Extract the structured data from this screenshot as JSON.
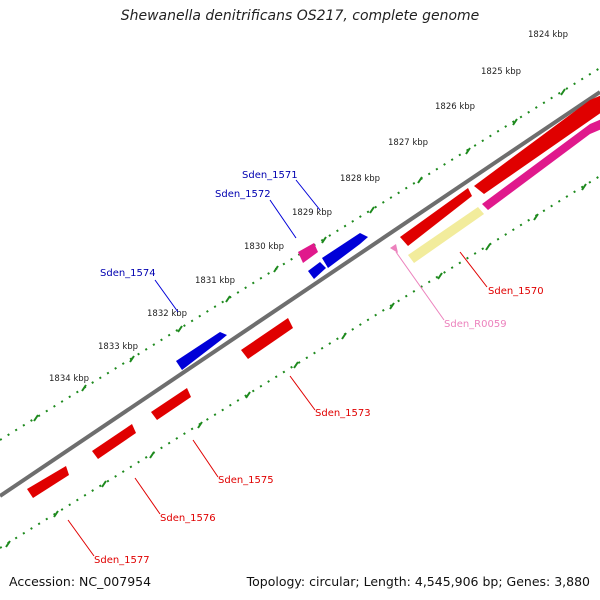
{
  "title": "Shewanella denitrificans OS217, complete genome",
  "footer": {
    "accession": "Accession: NC_007954",
    "info": "Topology: circular; Length: 4,545,906 bp; Genes: 3,880"
  },
  "colors": {
    "backbone": "#6e6e6e",
    "ruler": "#1e8a1e",
    "forward_gene": "#e00000",
    "reverse_gene": "#0000d8",
    "rna_gene": "#e0198c",
    "pseudo_gene": "#f2ec9c",
    "forward_label": "#e00000",
    "reverse_label": "#0000b0",
    "rna_label": "#ec82bd"
  },
  "ruler_labels": [
    "1824 kbp",
    "1825 kbp",
    "1826 kbp",
    "1827 kbp",
    "1828 kbp",
    "1829 kbp",
    "1830 kbp",
    "1831 kbp",
    "1832 kbp",
    "1833 kbp",
    "1834 kbp"
  ],
  "gene_labels": {
    "sden_1570": "Sden_1570",
    "sden_r0059": "Sden_R0059",
    "sden_1573": "Sden_1573",
    "sden_1575": "Sden_1575",
    "sden_1576": "Sden_1576",
    "sden_1577": "Sden_1577",
    "sden_1571": "Sden_1571",
    "sden_1572": "Sden_1572",
    "sden_1574": "Sden_1574"
  }
}
